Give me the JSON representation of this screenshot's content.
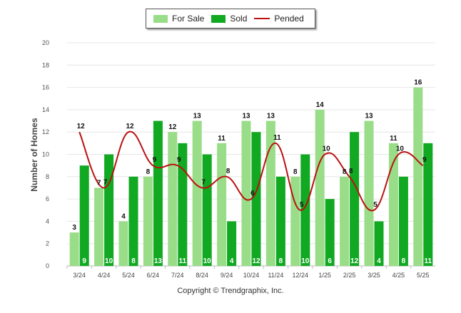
{
  "chart_data": {
    "type": "bar",
    "title": "",
    "xlabel": "",
    "ylabel": "Number of Homes",
    "ylim": [
      0,
      20
    ],
    "yticks": [
      0,
      2,
      4,
      6,
      8,
      10,
      12,
      14,
      16,
      18,
      20
    ],
    "categories": [
      "3/24",
      "4/24",
      "5/24",
      "6/24",
      "7/24",
      "8/24",
      "9/24",
      "10/24",
      "11/24",
      "12/24",
      "1/25",
      "2/25",
      "3/25",
      "4/25",
      "5/25"
    ],
    "series": [
      {
        "name": "For Sale",
        "kind": "bar",
        "color": "#99dd88",
        "values": [
          3,
          7,
          4,
          8,
          12,
          13,
          11,
          13,
          13,
          8,
          14,
          8,
          13,
          11,
          16
        ]
      },
      {
        "name": "Sold",
        "kind": "bar",
        "color": "#11a822",
        "values": [
          9,
          10,
          8,
          13,
          11,
          10,
          4,
          12,
          8,
          10,
          6,
          12,
          4,
          8,
          11
        ]
      },
      {
        "name": "Pended",
        "kind": "line",
        "color": "#bb1111",
        "values": [
          12,
          7,
          12,
          9,
          9,
          7,
          8,
          6,
          11,
          5,
          10,
          8,
          5,
          10,
          9
        ]
      }
    ],
    "grid": true,
    "legend_position": "top-center"
  },
  "footer": {
    "copyright": "Copyright © Trendgraphix, Inc."
  }
}
